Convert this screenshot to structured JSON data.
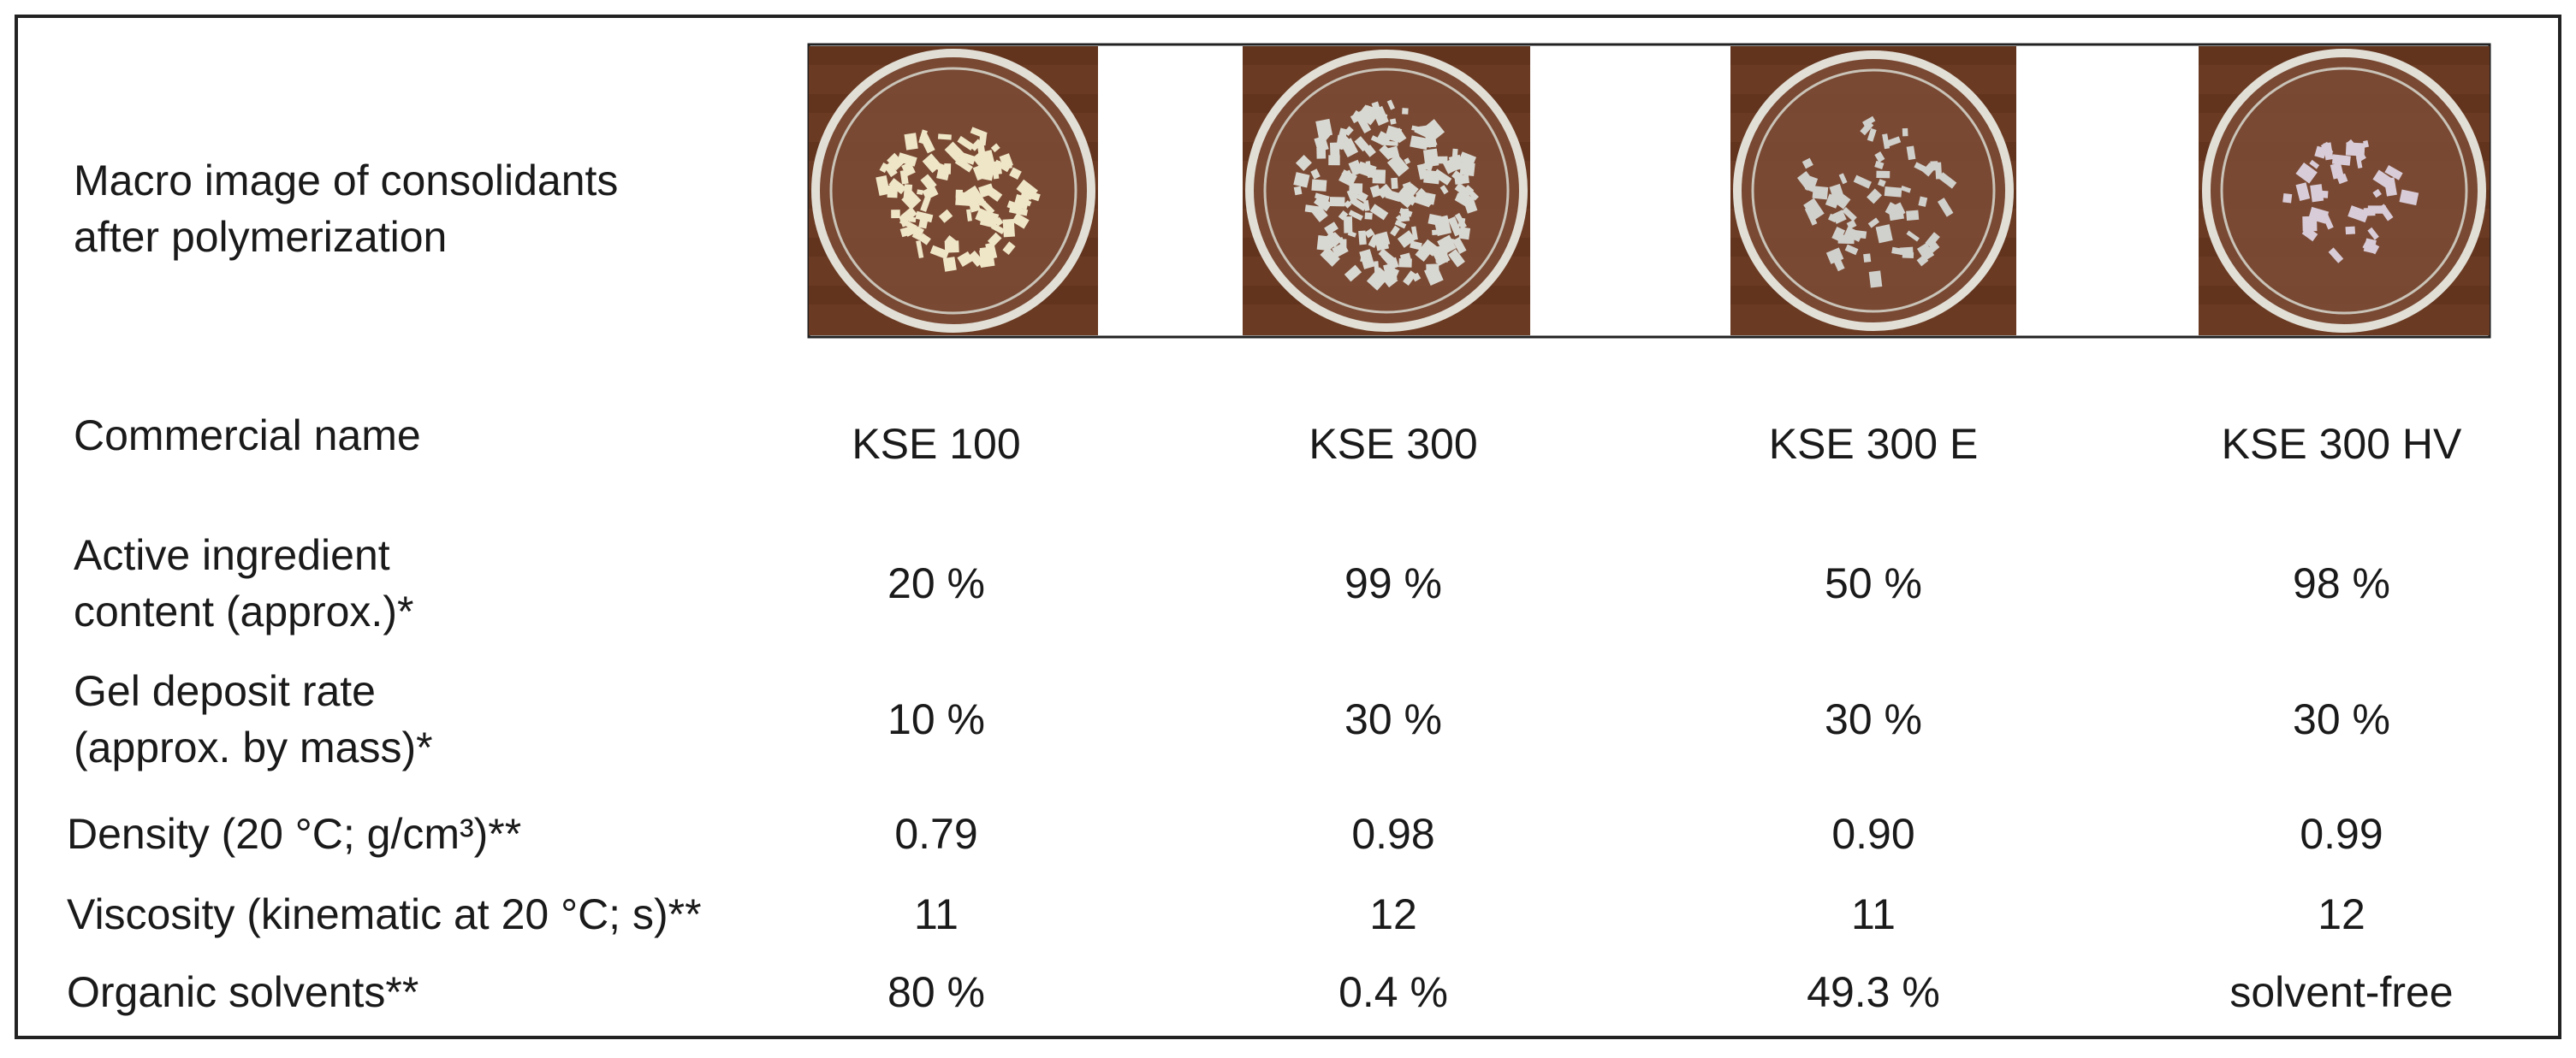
{
  "image_row": {
    "label": [
      "Macro image of consolidants",
      "after polymerization"
    ]
  },
  "table": {
    "rows": [
      {
        "label": [
          "Commercial name"
        ],
        "cells": [
          "KSE 100",
          "KSE 300",
          "KSE 300 E",
          "KSE 300 HV"
        ]
      },
      {
        "label": [
          "Active ingredient",
          "content (approx.)*"
        ],
        "cells": [
          "20 %",
          "99 %",
          "50 %",
          "98 %"
        ]
      },
      {
        "label": [
          "Gel deposit rate",
          "(approx. by mass)*"
        ],
        "cells": [
          "10 %",
          "30 %",
          "30 %",
          "30 %"
        ]
      },
      {
        "label": [
          "Density (20 °C; g/cm³)**"
        ],
        "cells": [
          "0.79",
          "0.98",
          "0.90",
          "0.99"
        ]
      },
      {
        "label": [
          "Viscosity (kinematic at 20 °C; s)**"
        ],
        "cells": [
          "11",
          "12",
          "11",
          "12"
        ]
      },
      {
        "label": [
          "Organic solvents**"
        ],
        "cells": [
          "80 %",
          "0.4 %",
          "49.3 %",
          "solvent-free"
        ]
      }
    ]
  }
}
